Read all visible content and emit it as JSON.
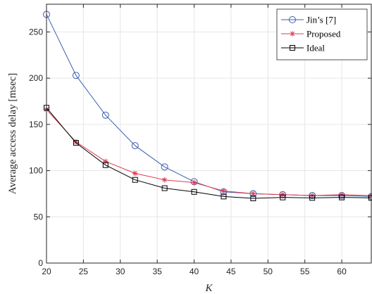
{
  "chart_data": {
    "type": "line",
    "xlabel": "K",
    "ylabel": "Average access delay [msec]",
    "xlim": [
      20,
      64
    ],
    "ylim": [
      0,
      280
    ],
    "xticks": [
      20,
      25,
      30,
      35,
      40,
      45,
      50,
      55,
      60
    ],
    "yticks": [
      0,
      50,
      100,
      150,
      200,
      250
    ],
    "grid": true,
    "legend_position": "top-right",
    "x": [
      20,
      24,
      28,
      32,
      36,
      40,
      44,
      48,
      52,
      56,
      60,
      64
    ],
    "series": [
      {
        "name": "Jin’s [7]",
        "color": "#3a5fad",
        "marker": "circle",
        "values": [
          269,
          203,
          160,
          127,
          104,
          88,
          77,
          75,
          74,
          73,
          73,
          72
        ]
      },
      {
        "name": "Proposed",
        "color": "#e23b54",
        "marker": "asterisk",
        "values": [
          166,
          131,
          110,
          97,
          90,
          87,
          78,
          75,
          74,
          73,
          74,
          73
        ]
      },
      {
        "name": "Ideal",
        "color": "#000000",
        "marker": "square",
        "values": [
          168,
          130,
          106,
          90,
          81,
          77,
          72,
          70,
          71,
          70.5,
          71,
          70.5
        ]
      }
    ]
  }
}
